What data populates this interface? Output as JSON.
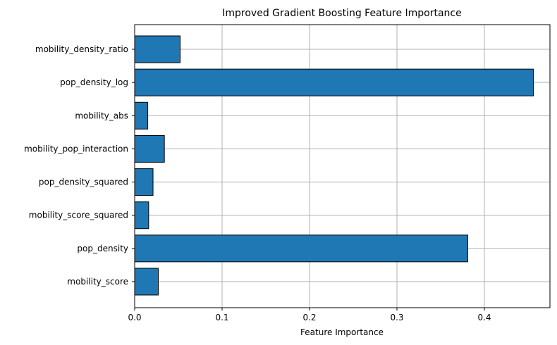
{
  "chart_data": {
    "type": "bar",
    "orientation": "horizontal",
    "title": "Improved Gradient Boosting Feature Importance",
    "xlabel": "Feature Importance",
    "ylabel": "",
    "categories": [
      "mobility_score",
      "pop_density",
      "mobility_score_squared",
      "pop_density_squared",
      "mobility_pop_interaction",
      "mobility_abs",
      "pop_density_log",
      "mobility_density_ratio"
    ],
    "values": [
      0.027,
      0.381,
      0.016,
      0.021,
      0.034,
      0.015,
      0.456,
      0.052
    ],
    "xlim": [
      0,
      0.475
    ],
    "xticks": [
      0.0,
      0.1,
      0.2,
      0.3,
      0.4
    ],
    "xtick_labels": [
      "0.0",
      "0.1",
      "0.2",
      "0.3",
      "0.4"
    ],
    "grid": true,
    "colors": {
      "bar": "#1f77b4",
      "edge": "#000000",
      "grid": "#b0b0b0"
    }
  }
}
